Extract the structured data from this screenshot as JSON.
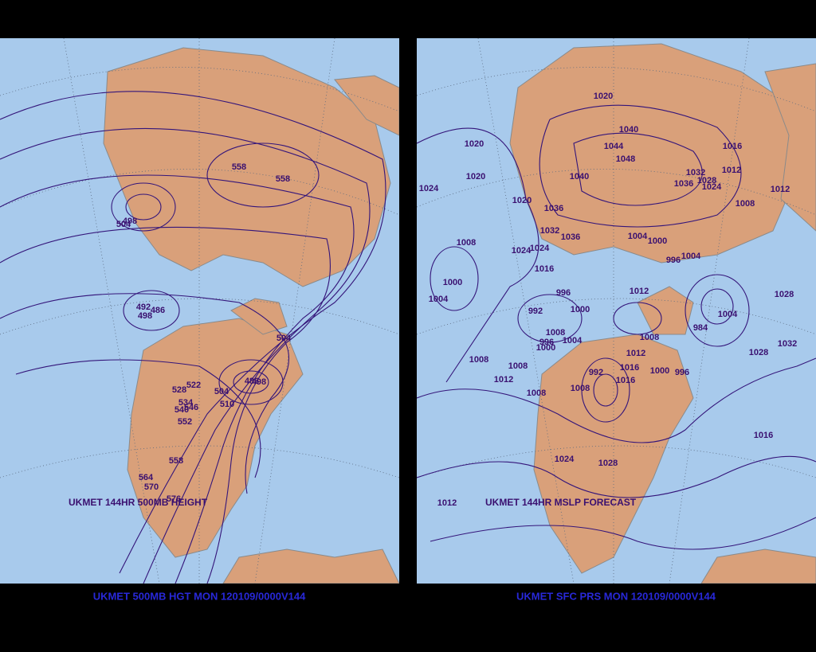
{
  "panels": [
    {
      "map_label": "UKMET 144HR 500MB HEIGHT",
      "caption": "UKMET 500MB HGT MON 120109/0000V144",
      "contour_labels": [
        "558",
        "558",
        "498",
        "504",
        "492",
        "486",
        "498",
        "504",
        "498",
        "486",
        "522",
        "528",
        "504",
        "510",
        "534",
        "540",
        "546",
        "552",
        "558",
        "564",
        "570",
        "576"
      ]
    },
    {
      "map_label": "UKMET 144HR MSLP FORECAST",
      "caption": "UKMET SFC PRS MON 120109/0000V144",
      "contour_labels": [
        "1020",
        "1040",
        "1044",
        "1048",
        "1040",
        "1016",
        "1020",
        "1020",
        "1024",
        "1032",
        "1036",
        "1028",
        "1024",
        "1012",
        "1012",
        "1008",
        "1020",
        "1036",
        "1032",
        "1036",
        "1024",
        "1024",
        "1016",
        "1008",
        "1000",
        "1004",
        "1004",
        "1000",
        "996",
        "1004",
        "1012",
        "1000",
        "992",
        "996",
        "1028",
        "1032",
        "1028",
        "1016",
        "984",
        "1004",
        "1008",
        "1004",
        "996",
        "1000",
        "1008",
        "1012",
        "1008",
        "1008",
        "992",
        "1016",
        "1016",
        "1012",
        "1008",
        "1000",
        "996",
        "1008",
        "1024",
        "1028",
        "1012"
      ]
    }
  ]
}
